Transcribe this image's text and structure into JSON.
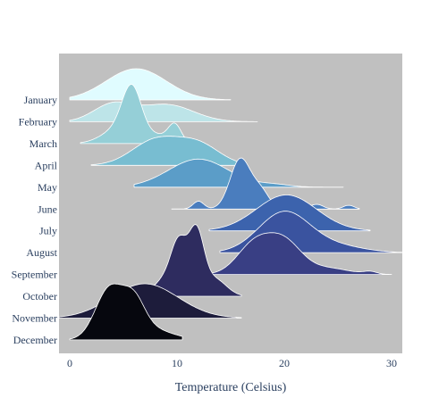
{
  "chart_data": {
    "type": "area",
    "subtype": "ridgeline",
    "title": "",
    "xlabel": "Temperature (Celsius)",
    "ylabel": "",
    "xlim": [
      -1,
      31
    ],
    "xticks": [
      0,
      10,
      20,
      30
    ],
    "tick_labels": [
      "0",
      "10",
      "20",
      "30"
    ],
    "grid": false,
    "plot_background": "#c0c0c0",
    "legend": "none",
    "categories": [
      "January",
      "February",
      "March",
      "April",
      "May",
      "June",
      "July",
      "August",
      "September",
      "October",
      "November",
      "December"
    ],
    "series": [
      {
        "name": "January",
        "color": "#e0fcff",
        "range": [
          0,
          15
        ],
        "peaks": [
          {
            "mu": 6.2,
            "sigma": 2.8,
            "amp": 1.0
          }
        ]
      },
      {
        "name": "February",
        "color": "#bde4e8",
        "range": [
          0,
          17.5
        ],
        "peaks": [
          {
            "mu": 4,
            "sigma": 1.8,
            "amp": 0.55
          },
          {
            "mu": 9,
            "sigma": 2.5,
            "amp": 0.55
          }
        ]
      },
      {
        "name": "March",
        "color": "#95cfd7",
        "range": [
          1,
          11
        ],
        "peaks": [
          {
            "mu": 5.8,
            "sigma": 0.9,
            "amp": 1.55
          },
          {
            "mu": 4.5,
            "sigma": 1.5,
            "amp": 0.45
          },
          {
            "mu": 9.8,
            "sigma": 0.6,
            "amp": 0.55
          },
          {
            "mu": 8.2,
            "sigma": 1.2,
            "amp": 0.25
          }
        ]
      },
      {
        "name": "April",
        "color": "#78bdd1",
        "range": [
          2,
          16
        ],
        "peaks": [
          {
            "mu": 8,
            "sigma": 2.2,
            "amp": 0.8
          },
          {
            "mu": 12,
            "sigma": 2.0,
            "amp": 0.65
          }
        ]
      },
      {
        "name": "May",
        "color": "#5b9dc8",
        "range": [
          6,
          25.5
        ],
        "peaks": [
          {
            "mu": 12,
            "sigma": 2.8,
            "amp": 0.9
          },
          {
            "mu": 19,
            "sigma": 1.6,
            "amp": 0.08
          }
        ]
      },
      {
        "name": "June",
        "color": "#4a7dbe",
        "range": [
          9.5,
          27
        ],
        "peaks": [
          {
            "mu": 15.9,
            "sigma": 0.95,
            "amp": 1.6
          },
          {
            "mu": 17.8,
            "sigma": 0.8,
            "amp": 0.55
          },
          {
            "mu": 12,
            "sigma": 0.5,
            "amp": 0.25
          },
          {
            "mu": 23,
            "sigma": 0.6,
            "amp": 0.15
          },
          {
            "mu": 26,
            "sigma": 0.5,
            "amp": 0.12
          }
        ]
      },
      {
        "name": "July",
        "color": "#3c63ad",
        "range": [
          13,
          28
        ],
        "peaks": [
          {
            "mu": 20.2,
            "sigma": 2.8,
            "amp": 1.15
          }
        ]
      },
      {
        "name": "August",
        "color": "#3a539f",
        "range": [
          14,
          31
        ],
        "peaks": [
          {
            "mu": 20,
            "sigma": 2.4,
            "amp": 1.3
          },
          {
            "mu": 25,
            "sigma": 2.5,
            "amp": 0.2
          }
        ]
      },
      {
        "name": "September",
        "color": "#393f84",
        "range": [
          13,
          30
        ],
        "peaks": [
          {
            "mu": 17.2,
            "sigma": 1.6,
            "amp": 0.95
          },
          {
            "mu": 20,
            "sigma": 1.6,
            "amp": 1.0
          },
          {
            "mu": 24,
            "sigma": 2.0,
            "amp": 0.2
          },
          {
            "mu": 28,
            "sigma": 0.6,
            "amp": 0.08
          }
        ]
      },
      {
        "name": "October",
        "color": "#2e2c5f",
        "range": [
          7,
          16
        ],
        "peaks": [
          {
            "mu": 10.2,
            "sigma": 0.75,
            "amp": 1.6
          },
          {
            "mu": 11.8,
            "sigma": 0.7,
            "amp": 1.95
          },
          {
            "mu": 8.8,
            "sigma": 1.0,
            "amp": 0.5
          },
          {
            "mu": 13.5,
            "sigma": 1.1,
            "amp": 0.55
          }
        ]
      },
      {
        "name": "November",
        "color": "#1d1c3b",
        "range": [
          -1,
          16
        ],
        "peaks": [
          {
            "mu": 7,
            "sigma": 3.1,
            "amp": 1.1
          }
        ]
      },
      {
        "name": "December",
        "color": "#06070e",
        "range": [
          0,
          10.5
        ],
        "peaks": [
          {
            "mu": 3.7,
            "sigma": 1.3,
            "amp": 1.55
          },
          {
            "mu": 6,
            "sigma": 1.0,
            "amp": 0.9
          },
          {
            "mu": 7,
            "sigma": 2.2,
            "amp": 0.4
          }
        ]
      }
    ]
  }
}
